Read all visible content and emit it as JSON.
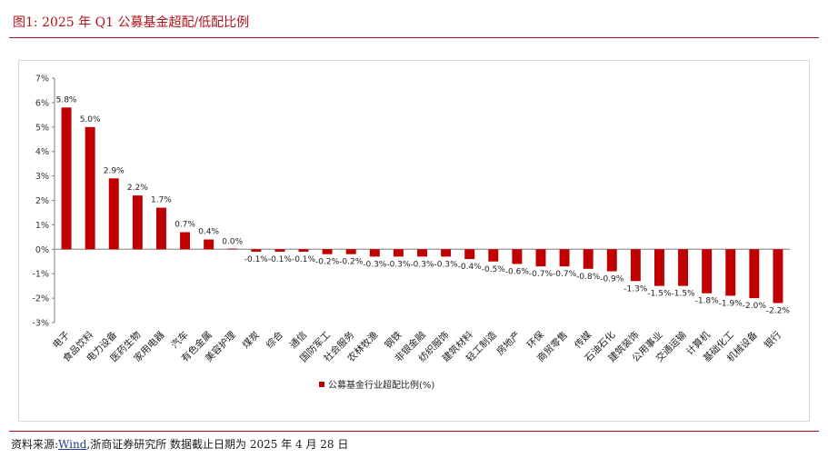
{
  "figure": {
    "title": "图1:  2025 年 Q1 公募基金超配/低配比例",
    "source_prefix": "资料来源:",
    "source_link": "Wind",
    "source_suffix": ",浙商证券研究所 数据截止日期为 2025 年 4 月 28 日"
  },
  "colors": {
    "bar": "#c00000",
    "rule": "#b0121b",
    "axis": "#7f7f7f"
  },
  "chart_data": {
    "type": "bar",
    "categories": [
      "电子",
      "食品饮料",
      "电力设备",
      "医药生物",
      "家用电器",
      "汽车",
      "有色金属",
      "美容护理",
      "煤炭",
      "综合",
      "通信",
      "国防军工",
      "社会服务",
      "农林牧渔",
      "钢铁",
      "非银金融",
      "纺织服饰",
      "建筑材料",
      "轻工制造",
      "房地产",
      "环保",
      "商贸零售",
      "传媒",
      "石油石化",
      "建筑装饰",
      "公用事业",
      "交通运输",
      "计算机",
      "基础化工",
      "机械设备",
      "银行"
    ],
    "series": [
      {
        "name": "公募基金行业超配比例(%)",
        "values": [
          5.8,
          5.0,
          2.9,
          2.2,
          1.7,
          0.7,
          0.4,
          0.0,
          -0.1,
          -0.1,
          -0.1,
          -0.2,
          -0.2,
          -0.3,
          -0.3,
          -0.3,
          -0.3,
          -0.4,
          -0.5,
          -0.6,
          -0.7,
          -0.7,
          -0.8,
          -0.9,
          -1.3,
          -1.5,
          -1.5,
          -1.8,
          -1.9,
          -2.0,
          -2.2
        ],
        "labels": [
          "5.8%",
          "5.0%",
          "2.9%",
          "2.2%",
          "1.7%",
          "0.7%",
          "0.4%",
          "0.0%",
          "-0.1%",
          "-0.1%",
          "-0.1%",
          "-0.2%",
          "-0.2%",
          "-0.3%",
          "-0.3%",
          "-0.3%",
          "-0.3%",
          "-0.4%",
          "-0.5%",
          "-0.6%",
          "-0.7%",
          "-0.7%",
          "-0.8%",
          "-0.9%",
          "-1.3%",
          "-1.5%",
          "-1.5%",
          "-1.8%",
          "-1.9%",
          "-2.0%",
          "-2.2%"
        ]
      }
    ],
    "y_ticks": [
      "7%",
      "6%",
      "5%",
      "4%",
      "3%",
      "2%",
      "1%",
      "0%",
      "-1%",
      "-2%",
      "-3%"
    ],
    "ylim": [
      -3,
      7
    ],
    "grid": false,
    "legend": "bottom"
  }
}
